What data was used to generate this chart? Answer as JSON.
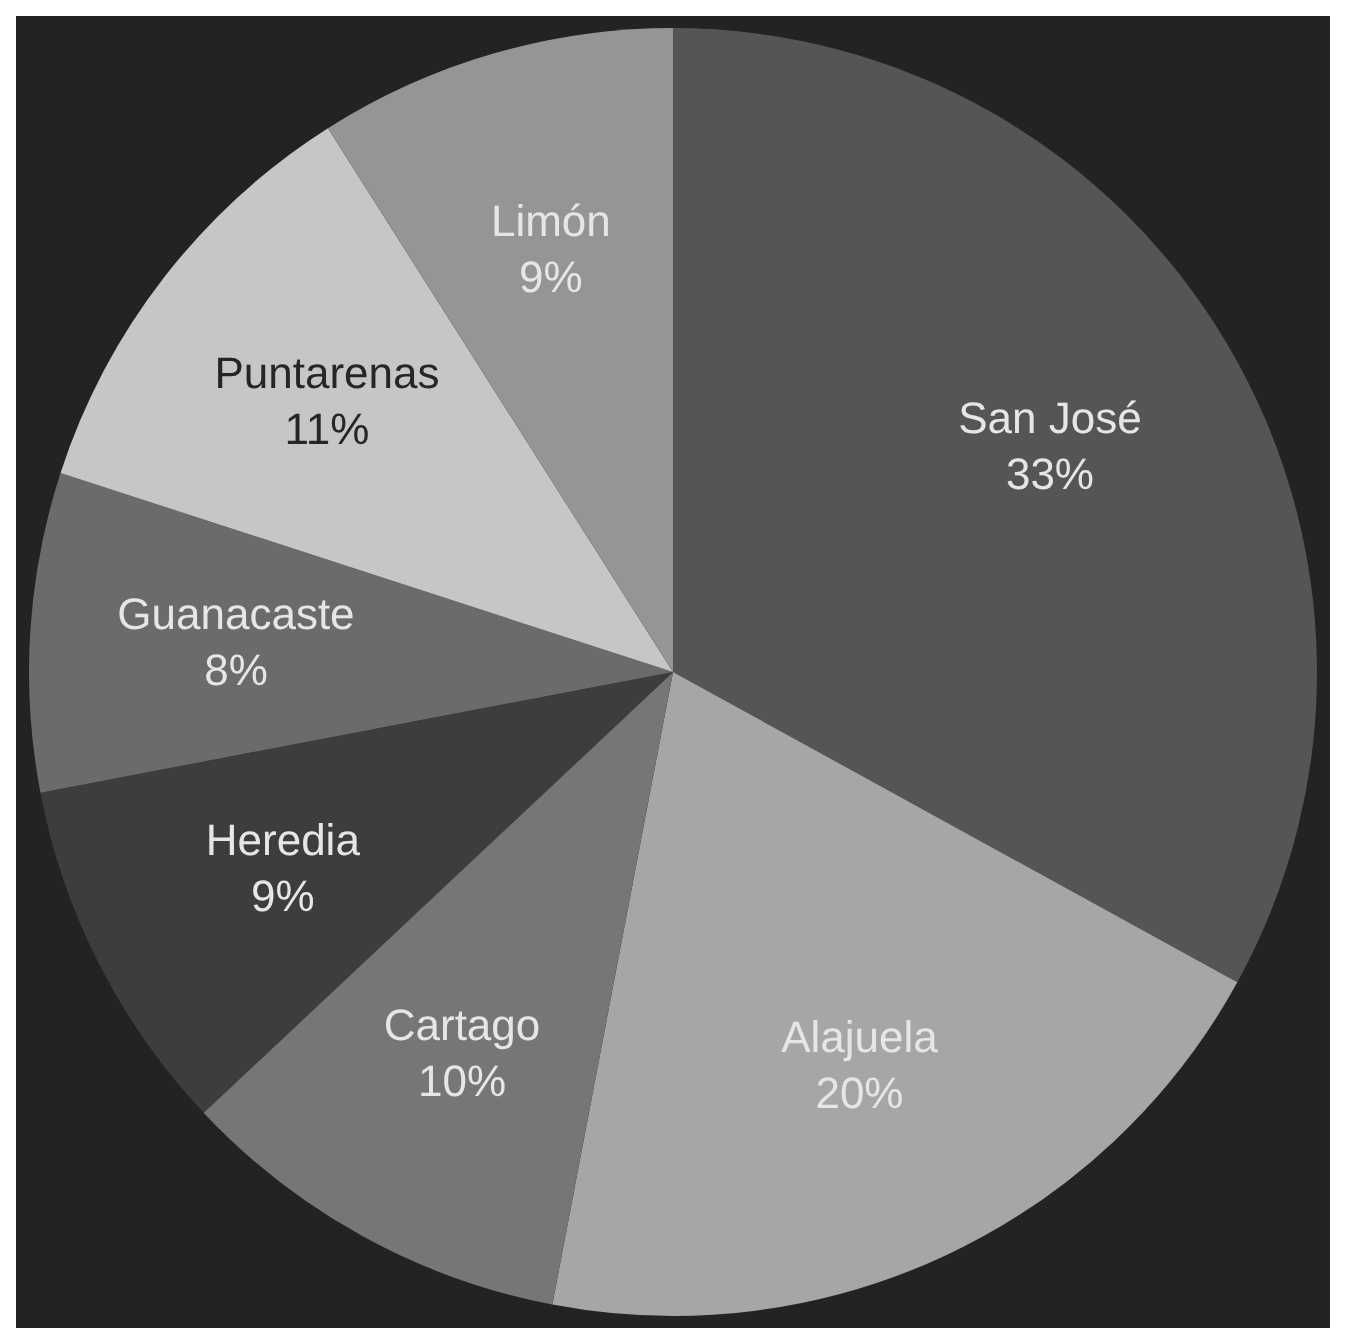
{
  "chart_data": {
    "type": "pie",
    "categories": [
      "San José",
      "Alajuela",
      "Cartago",
      "Heredia",
      "Guanacaste",
      "Puntarenas",
      "Limón"
    ],
    "values": [
      33,
      20,
      10,
      9,
      8,
      11,
      9
    ],
    "value_labels": [
      "33%",
      "20%",
      "10%",
      "9%",
      "8%",
      "11%",
      "9%"
    ],
    "colors": [
      "#555555",
      "#a6a6a6",
      "#767676",
      "#3d3d3d",
      "#6b6b6b",
      "#c6c6c6",
      "#959595"
    ],
    "legend": false
  }
}
